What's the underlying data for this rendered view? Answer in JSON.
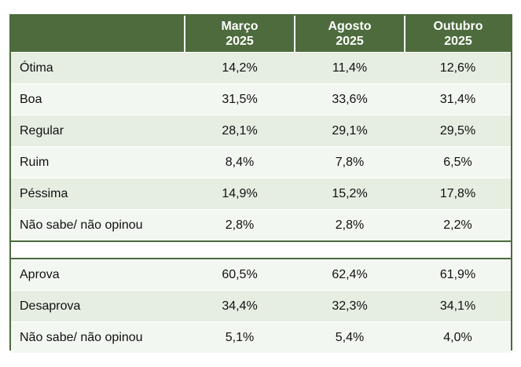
{
  "header": {
    "columns": [
      {
        "month": "Março",
        "year": "2025"
      },
      {
        "month": "Agosto",
        "year": "2025"
      },
      {
        "month": "Outubro",
        "year": "2025"
      }
    ]
  },
  "evaluation": [
    {
      "label": "Ótima",
      "values": [
        "14,2%",
        "11,4%",
        "12,6%"
      ]
    },
    {
      "label": "Boa",
      "values": [
        "31,5%",
        "33,6%",
        "31,4%"
      ]
    },
    {
      "label": "Regular",
      "values": [
        "28,1%",
        "29,1%",
        "29,5%"
      ]
    },
    {
      "label": "Ruim",
      "values": [
        "8,4%",
        "7,8%",
        "6,5%"
      ]
    },
    {
      "label": "Péssima",
      "values": [
        "14,9%",
        "15,2%",
        "17,8%"
      ]
    },
    {
      "label": "Não sabe/ não opinou",
      "values": [
        "2,8%",
        "2,8%",
        "2,2%"
      ]
    }
  ],
  "approval": [
    {
      "label": "Aprova",
      "values": [
        "60,5%",
        "62,4%",
        "61,9%"
      ]
    },
    {
      "label": "Desaprova",
      "values": [
        "34,4%",
        "32,3%",
        "34,1%"
      ]
    },
    {
      "label": "Não sabe/ não opinou",
      "values": [
        "5,1%",
        "5,4%",
        "4,0%"
      ]
    }
  ]
}
